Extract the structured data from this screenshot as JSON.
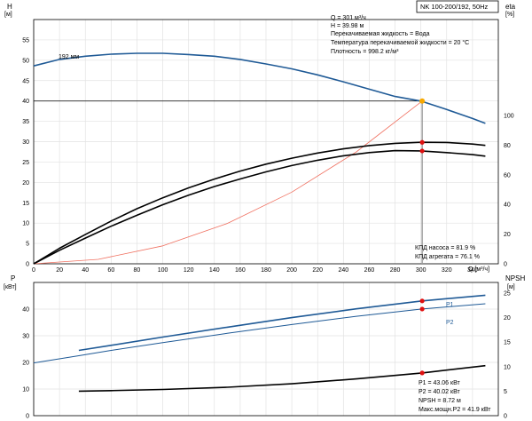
{
  "chart_data": [
    {
      "type": "line",
      "title": "NK 100-200/192, 50Hz",
      "x_axis": {
        "label": "Q [м³/ч]",
        "range": [
          0,
          360
        ],
        "ticks": [
          0,
          20,
          40,
          60,
          80,
          100,
          120,
          140,
          160,
          180,
          200,
          220,
          240,
          260,
          280,
          300,
          320,
          340
        ]
      },
      "y_left": {
        "label_top": "H",
        "label_unit": "[м]",
        "range": [
          0,
          60
        ],
        "ticks": [
          0,
          5,
          10,
          15,
          20,
          25,
          30,
          35,
          40,
          45,
          50,
          55
        ]
      },
      "y_right": {
        "label_top": "eta",
        "label_unit": "[%]",
        "range": [
          0,
          100
        ],
        "ticks": [
          0,
          20,
          40,
          60,
          80,
          100
        ]
      },
      "grid": true,
      "series": [
        {
          "name": "192 мм",
          "axis": "left",
          "color": "#1f5a96",
          "x": [
            0,
            20,
            40,
            60,
            80,
            100,
            120,
            140,
            160,
            180,
            200,
            220,
            240,
            260,
            280,
            300,
            320,
            340,
            350
          ],
          "y": [
            48.6,
            50.2,
            51.0,
            51.5,
            51.7,
            51.7,
            51.4,
            51.0,
            50.2,
            49.1,
            47.9,
            46.4,
            44.7,
            42.9,
            41.1,
            39.98,
            37.9,
            35.7,
            34.5
          ]
        },
        {
          "name": "",
          "axis": "left",
          "color": "#f07060",
          "x": [
            0,
            50,
            100,
            150,
            200,
            250,
            301
          ],
          "y": [
            0,
            1.1,
            4.4,
            9.9,
            17.6,
            27.5,
            39.98
          ]
        },
        {
          "name": "",
          "axis": "right",
          "color": "#000000",
          "x": [
            0,
            20,
            40,
            60,
            80,
            100,
            120,
            140,
            160,
            180,
            200,
            220,
            240,
            260,
            280,
            300,
            320,
            340,
            350
          ],
          "y": [
            0,
            10.5,
            19.7,
            28.8,
            37.1,
            44.5,
            51.2,
            57.1,
            62.5,
            67.2,
            71.2,
            74.7,
            77.5,
            79.7,
            81.2,
            81.9,
            81.8,
            80.7,
            79.8
          ]
        },
        {
          "name": "",
          "axis": "right",
          "color": "#000000",
          "x": [
            0,
            20,
            40,
            60,
            80,
            100,
            120,
            140,
            160,
            180,
            200,
            220,
            240,
            260,
            280,
            300,
            320,
            340,
            350
          ],
          "y": [
            0,
            9.1,
            17.3,
            25.3,
            32.7,
            39.8,
            46.2,
            52.1,
            57.2,
            62.0,
            66.2,
            69.8,
            72.8,
            75.0,
            76.3,
            76.1,
            75.0,
            73.6,
            72.6
          ]
        }
      ],
      "operating_point": {
        "x": 301,
        "y": 39.98
      },
      "efficiency_points": [
        {
          "x": 301,
          "y": 81.9
        },
        {
          "x": 301,
          "y": 76.1
        }
      ],
      "annotations": [
        "Q = 301 м³/ч",
        "H = 39.98 м",
        "Перекачиваемая жидкость = Вода",
        "Температура перекачиваемой жидкости = 20 °C",
        "Плотность = 998.2 кг/м³"
      ],
      "efficiency_labels": [
        "КПД насоса = 81.9 %",
        "КПД агрегата = 76.1 %"
      ]
    },
    {
      "type": "line",
      "x_axis": {
        "range": [
          0,
          360
        ]
      },
      "y_left": {
        "label_top": "P",
        "label_unit": "[кВт]",
        "range": [
          0,
          50
        ],
        "ticks": [
          0,
          10,
          20,
          30,
          40
        ]
      },
      "y_right": {
        "label_top": "NPSH",
        "label_unit": "[м]",
        "range": [
          0,
          25
        ],
        "ticks": [
          0,
          5,
          10,
          15,
          20,
          25
        ]
      },
      "grid": true,
      "series": [
        {
          "name": "P1",
          "axis": "left",
          "color": "#1f5a96",
          "x": [
            35,
            60,
            100,
            150,
            200,
            250,
            301,
            350
          ],
          "y": [
            24.5,
            26.4,
            29.5,
            33.2,
            36.8,
            40.1,
            43.06,
            45.2
          ]
        },
        {
          "name": "P2",
          "axis": "left",
          "color": "#1f5a96",
          "x": [
            0,
            35,
            60,
            100,
            150,
            200,
            250,
            301,
            350
          ],
          "y": [
            19.8,
            22.5,
            24.5,
            27.4,
            30.9,
            34.2,
            37.3,
            40.02,
            42.0
          ]
        },
        {
          "name": "",
          "axis": "right",
          "color": "#000000",
          "x": [
            35,
            60,
            100,
            150,
            200,
            250,
            301,
            350
          ],
          "y": [
            5.0,
            5.1,
            5.35,
            5.8,
            6.5,
            7.5,
            8.72,
            10.2
          ]
        }
      ],
      "marked_points": [
        {
          "series": 0,
          "x": 301,
          "y": 43.06
        },
        {
          "series": 1,
          "x": 301,
          "y": 40.02
        },
        {
          "series": 2,
          "x": 301,
          "y": 8.72
        }
      ],
      "annotations": [
        "P1 = 43.06 кВт",
        "P2 = 40.02 кВт",
        "NPSH = 8.72 м",
        "Макс.мощн.P2 = 41.9 кВт"
      ]
    }
  ]
}
